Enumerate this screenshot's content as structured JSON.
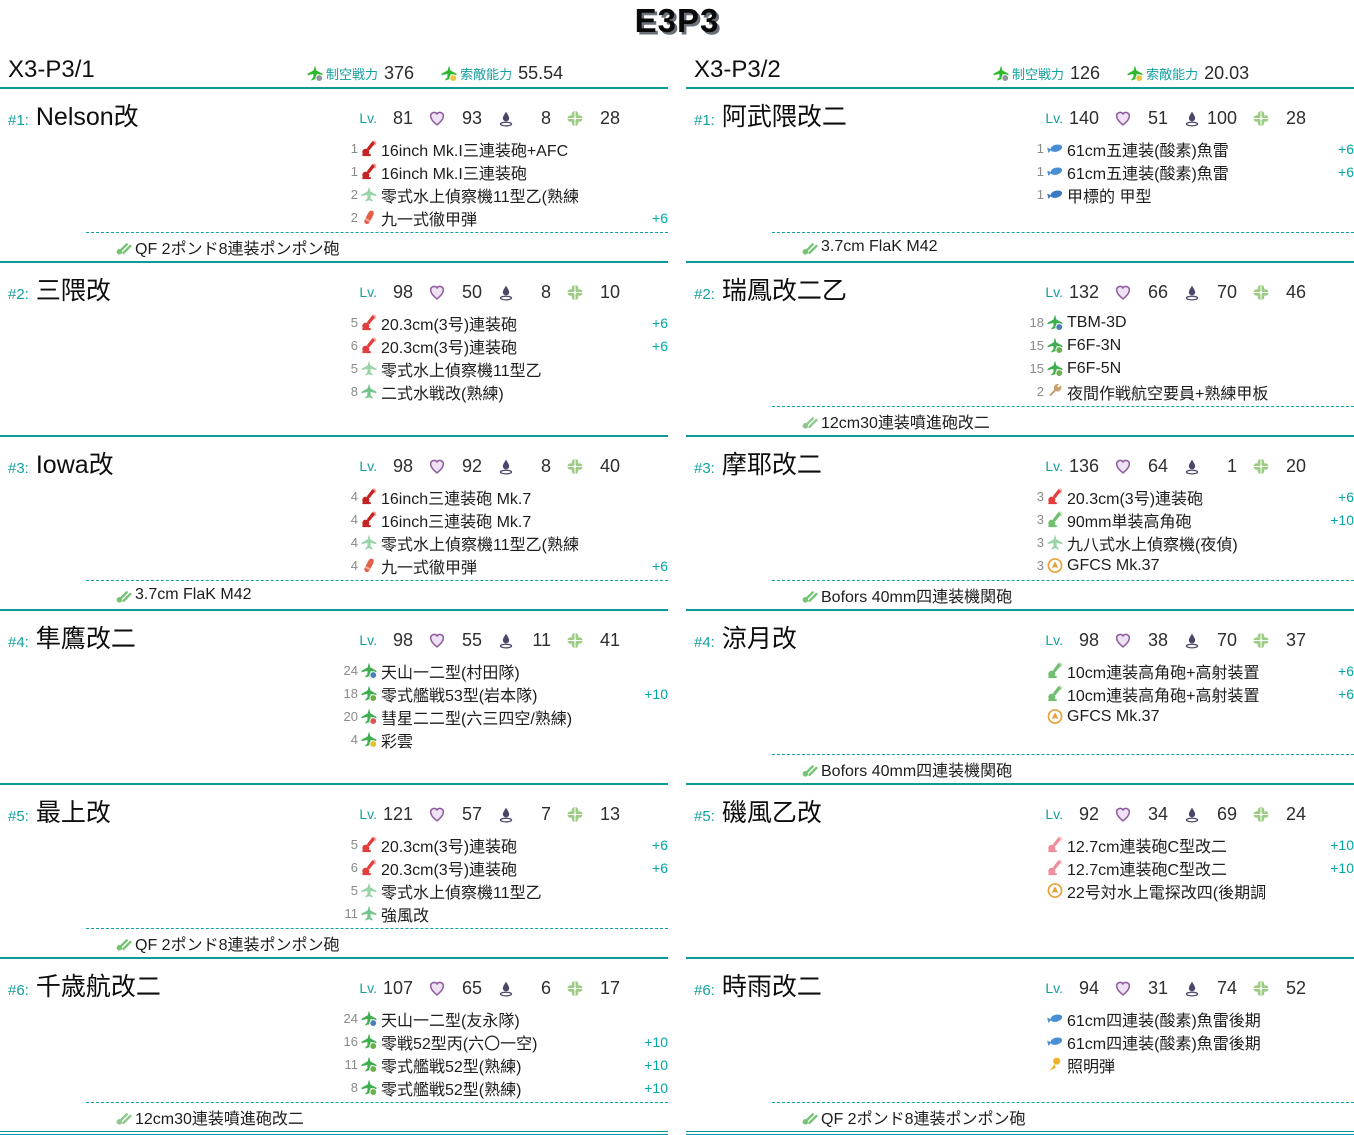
{
  "title": "E3P3",
  "stat_icons": {
    "air": "fighter-plane-icon",
    "los": "recon-plane-icon",
    "hp": "heart-icon",
    "asw": "splash-icon",
    "luck": "clover-icon"
  },
  "accent_color": "#14a0a0",
  "fleets": [
    {
      "name": "X3-P3/1",
      "air_label": "制空戦力",
      "air_value": "376",
      "los_label": "索敵能力",
      "los_value": "55.54",
      "ships": [
        {
          "index": "#1:",
          "name": "Nelson改",
          "level_label": "Lv.",
          "level": "81",
          "hp": "93",
          "asw": "8",
          "luck": "28",
          "equipment": [
            {
              "count": "1",
              "icon": "gun-large-icon",
              "name": "16inch Mk.I三連装砲+AFC",
              "improvement": ""
            },
            {
              "count": "1",
              "icon": "gun-large-icon",
              "name": "16inch Mk.I三連装砲",
              "improvement": ""
            },
            {
              "count": "2",
              "icon": "seaplane-icon",
              "name": "零式水上偵察機11型乙(熟練",
              "improvement": ""
            },
            {
              "count": "2",
              "icon": "ap-shell-icon",
              "name": "九一式徹甲弾",
              "improvement": "+6"
            }
          ],
          "ex_slot": {
            "icon": "aa-gun-icon",
            "name": "QF 2ポンド8連装ポンポン砲"
          }
        },
        {
          "index": "#2:",
          "name": "三隈改",
          "level_label": "Lv.",
          "level": "98",
          "hp": "50",
          "asw": "8",
          "luck": "10",
          "equipment": [
            {
              "count": "5",
              "icon": "gun-medium-icon",
              "name": "20.3cm(3号)連装砲",
              "improvement": "+6"
            },
            {
              "count": "6",
              "icon": "gun-medium-icon",
              "name": "20.3cm(3号)連装砲",
              "improvement": "+6"
            },
            {
              "count": "5",
              "icon": "seaplane-icon",
              "name": "零式水上偵察機11型乙",
              "improvement": ""
            },
            {
              "count": "8",
              "icon": "seaplane-fighter-icon",
              "name": "二式水戦改(熟練)",
              "improvement": ""
            }
          ],
          "ex_slot": null
        },
        {
          "index": "#3:",
          "name": "Iowa改",
          "level_label": "Lv.",
          "level": "98",
          "hp": "92",
          "asw": "8",
          "luck": "40",
          "equipment": [
            {
              "count": "4",
              "icon": "gun-large-icon",
              "name": "16inch三連装砲 Mk.7",
              "improvement": ""
            },
            {
              "count": "4",
              "icon": "gun-large-icon",
              "name": "16inch三連装砲 Mk.7",
              "improvement": ""
            },
            {
              "count": "4",
              "icon": "seaplane-icon",
              "name": "零式水上偵察機11型乙(熟練",
              "improvement": ""
            },
            {
              "count": "4",
              "icon": "ap-shell-icon",
              "name": "九一式徹甲弾",
              "improvement": "+6"
            }
          ],
          "ex_slot": {
            "icon": "aa-gun-icon",
            "name": "3.7cm FlaK M42"
          }
        },
        {
          "index": "#4:",
          "name": "隼鷹改二",
          "level_label": "Lv.",
          "level": "98",
          "hp": "55",
          "asw": "11",
          "luck": "41",
          "equipment": [
            {
              "count": "24",
              "icon": "plane-torpedo-icon",
              "name": "天山一二型(村田隊)",
              "improvement": ""
            },
            {
              "count": "18",
              "icon": "plane-fighter-icon",
              "name": "零式艦戦53型(岩本隊)",
              "improvement": "+10"
            },
            {
              "count": "20",
              "icon": "plane-bomber-icon",
              "name": "彗星二二型(六三四空/熟練)",
              "improvement": ""
            },
            {
              "count": "4",
              "icon": "plane-recon-icon",
              "name": "彩雲",
              "improvement": ""
            }
          ],
          "ex_slot": null
        },
        {
          "index": "#5:",
          "name": "最上改",
          "level_label": "Lv.",
          "level": "121",
          "hp": "57",
          "asw": "7",
          "luck": "13",
          "equipment": [
            {
              "count": "5",
              "icon": "gun-medium-icon",
              "name": "20.3cm(3号)連装砲",
              "improvement": "+6"
            },
            {
              "count": "6",
              "icon": "gun-medium-icon",
              "name": "20.3cm(3号)連装砲",
              "improvement": "+6"
            },
            {
              "count": "5",
              "icon": "seaplane-icon",
              "name": "零式水上偵察機11型乙",
              "improvement": ""
            },
            {
              "count": "11",
              "icon": "seaplane-fighter-icon",
              "name": "強風改",
              "improvement": ""
            }
          ],
          "ex_slot": {
            "icon": "aa-gun-icon",
            "name": "QF 2ポンド8連装ポンポン砲"
          }
        },
        {
          "index": "#6:",
          "name": "千歳航改二",
          "level_label": "Lv.",
          "level": "107",
          "hp": "65",
          "asw": "6",
          "luck": "17",
          "equipment": [
            {
              "count": "24",
              "icon": "plane-torpedo-icon",
              "name": "天山一二型(友永隊)",
              "improvement": ""
            },
            {
              "count": "16",
              "icon": "plane-fighter-icon",
              "name": "零戦52型丙(六〇一空)",
              "improvement": "+10"
            },
            {
              "count": "11",
              "icon": "plane-fighter-icon",
              "name": "零式艦戦52型(熟練)",
              "improvement": "+10"
            },
            {
              "count": "8",
              "icon": "plane-fighter-icon",
              "name": "零式艦戦52型(熟練)",
              "improvement": "+10"
            }
          ],
          "ex_slot": {
            "icon": "rocket-launcher-icon",
            "name": "12cm30連装噴進砲改二"
          }
        }
      ]
    },
    {
      "name": "X3-P3/2",
      "air_label": "制空戦力",
      "air_value": "126",
      "los_label": "索敵能力",
      "los_value": "20.03",
      "ships": [
        {
          "index": "#1:",
          "name": "阿武隈改二",
          "level_label": "Lv.",
          "level": "140",
          "hp": "51",
          "asw": "100",
          "luck": "28",
          "equipment": [
            {
              "count": "1",
              "icon": "torpedo-icon",
              "name": "61cm五連装(酸素)魚雷",
              "improvement": "+6"
            },
            {
              "count": "1",
              "icon": "torpedo-icon",
              "name": "61cm五連装(酸素)魚雷",
              "improvement": "+6"
            },
            {
              "count": "1",
              "icon": "midget-sub-icon",
              "name": "甲標的 甲型",
              "improvement": ""
            }
          ],
          "ex_slot": {
            "icon": "aa-gun-icon",
            "name": "3.7cm FlaK M42"
          }
        },
        {
          "index": "#2:",
          "name": "瑞鳳改二乙",
          "level_label": "Lv.",
          "level": "132",
          "hp": "66",
          "asw": "70",
          "luck": "46",
          "equipment": [
            {
              "count": "18",
              "icon": "plane-torpedo-icon",
              "name": "TBM-3D",
              "improvement": ""
            },
            {
              "count": "15",
              "icon": "plane-fighter-icon",
              "name": "F6F-3N",
              "improvement": ""
            },
            {
              "count": "15",
              "icon": "plane-fighter-icon",
              "name": "F6F-5N",
              "improvement": ""
            },
            {
              "count": "2",
              "icon": "crew-icon",
              "name": "夜間作戦航空要員+熟練甲板",
              "improvement": ""
            }
          ],
          "ex_slot": {
            "icon": "rocket-launcher-icon",
            "name": "12cm30連装噴進砲改二"
          }
        },
        {
          "index": "#3:",
          "name": "摩耶改二",
          "level_label": "Lv.",
          "level": "136",
          "hp": "64",
          "asw": "1",
          "luck": "20",
          "equipment": [
            {
              "count": "3",
              "icon": "gun-medium-icon",
              "name": "20.3cm(3号)連装砲",
              "improvement": "+6"
            },
            {
              "count": "3",
              "icon": "gun-ha-icon",
              "name": "90mm単装高角砲",
              "improvement": "+10"
            },
            {
              "count": "3",
              "icon": "seaplane-icon",
              "name": "九八式水上偵察機(夜偵)",
              "improvement": ""
            },
            {
              "count": "3",
              "icon": "radar-icon",
              "name": "GFCS Mk.37",
              "improvement": ""
            }
          ],
          "ex_slot": {
            "icon": "aa-gun-icon",
            "name": "Bofors 40mm四連装機関砲"
          }
        },
        {
          "index": "#4:",
          "name": "涼月改",
          "level_label": "Lv.",
          "level": "98",
          "hp": "38",
          "asw": "70",
          "luck": "37",
          "equipment": [
            {
              "count": "",
              "icon": "gun-ha-icon",
              "name": "10cm連装高角砲+高射装置",
              "improvement": "+6"
            },
            {
              "count": "",
              "icon": "gun-ha-icon",
              "name": "10cm連装高角砲+高射装置",
              "improvement": "+6"
            },
            {
              "count": "",
              "icon": "radar-icon",
              "name": "GFCS Mk.37",
              "improvement": ""
            }
          ],
          "ex_slot": {
            "icon": "aa-gun-icon",
            "name": "Bofors 40mm四連装機関砲"
          }
        },
        {
          "index": "#5:",
          "name": "磯風乙改",
          "level_label": "Lv.",
          "level": "92",
          "hp": "34",
          "asw": "69",
          "luck": "24",
          "equipment": [
            {
              "count": "",
              "icon": "gun-small-icon",
              "name": "12.7cm連装砲C型改二",
              "improvement": "+10"
            },
            {
              "count": "",
              "icon": "gun-small-icon",
              "name": "12.7cm連装砲C型改二",
              "improvement": "+10"
            },
            {
              "count": "",
              "icon": "radar-icon",
              "name": "22号対水上電探改四(後期調",
              "improvement": ""
            }
          ],
          "ex_slot": null
        },
        {
          "index": "#6:",
          "name": "時雨改二",
          "level_label": "Lv.",
          "level": "94",
          "hp": "31",
          "asw": "74",
          "luck": "52",
          "equipment": [
            {
              "count": "",
              "icon": "torpedo-icon",
              "name": "61cm四連装(酸素)魚雷後期",
              "improvement": ""
            },
            {
              "count": "",
              "icon": "torpedo-icon",
              "name": "61cm四連装(酸素)魚雷後期",
              "improvement": ""
            },
            {
              "count": "",
              "icon": "flare-icon",
              "name": "照明弾",
              "improvement": ""
            }
          ],
          "ex_slot": {
            "icon": "aa-gun-icon",
            "name": "QF 2ポンド8連装ポンポン砲"
          }
        }
      ]
    }
  ]
}
